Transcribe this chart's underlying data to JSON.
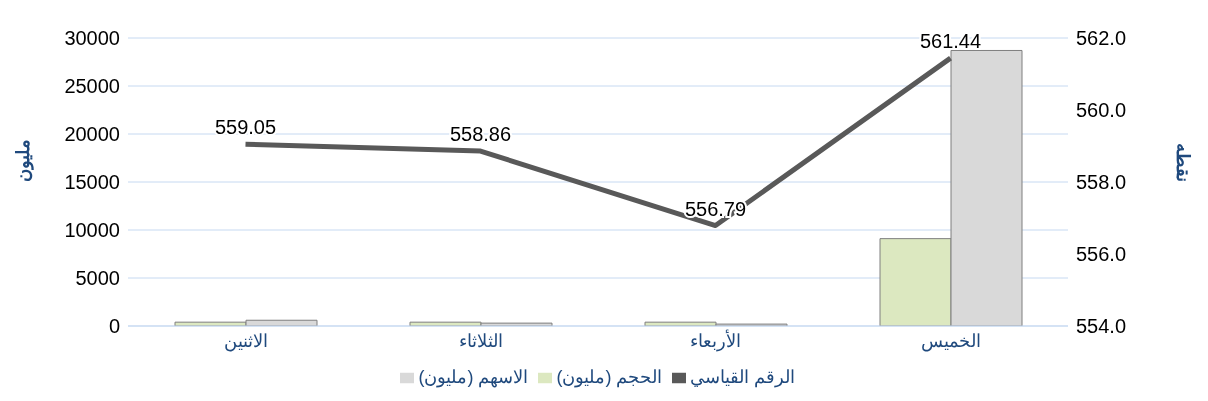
{
  "chart_data": {
    "type": "bar",
    "categories": [
      "الاثنين",
      "الثلاثاء",
      "الأربعاء",
      "الخميس"
    ],
    "series": [
      {
        "name": "الحجم (مليون)",
        "color": "#dce8c0",
        "values": [
          400,
          400,
          400,
          9100
        ]
      },
      {
        "name": "الاسهم (مليون)",
        "color": "#d9d9d9",
        "values": [
          600,
          300,
          200,
          28700
        ]
      },
      {
        "name": "الرقم القياسي",
        "type": "line",
        "axis": "y2",
        "color": "#595959",
        "values": [
          559.05,
          558.86,
          556.79,
          561.44
        ],
        "value_labels": [
          "559.05",
          "558.86",
          "556.79",
          "561.44"
        ]
      }
    ],
    "ylabel": "مليون",
    "y2label": "نقطه",
    "ylim": [
      0,
      30000
    ],
    "yticks": [
      0,
      5000,
      10000,
      15000,
      20000,
      25000,
      30000
    ],
    "y2lim": [
      554,
      562
    ],
    "y2ticks": [
      {
        "value": 554,
        "label": "554.0"
      },
      {
        "value": 556,
        "label": "556.0"
      },
      {
        "value": 558,
        "label": "558.0"
      },
      {
        "value": 560,
        "label": "560.0"
      },
      {
        "value": 562,
        "label": "562.0"
      }
    ],
    "grid": "y",
    "legend": "bottom",
    "marker": "none"
  }
}
